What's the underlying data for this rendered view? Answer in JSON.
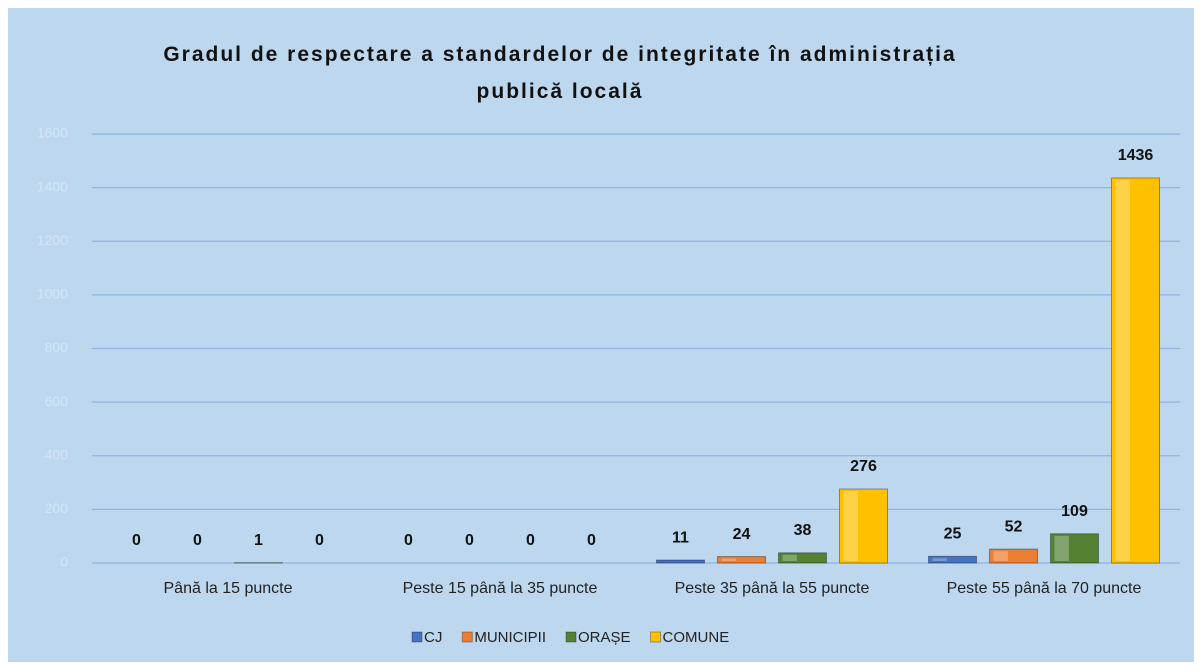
{
  "chart_data": {
    "type": "bar",
    "title": "Gradul de respectare a standardelor de integritate în administrația publică locală",
    "categories": [
      "Până la 15 puncte",
      "Peste 15 până la 35 puncte",
      "Peste 35 până la 55 puncte",
      "Peste 55 până la 70 puncte"
    ],
    "series": [
      {
        "name": "CJ",
        "color": "#4472c4",
        "values": [
          0,
          0,
          11,
          25
        ]
      },
      {
        "name": "MUNICIPII",
        "color": "#ed7d31",
        "values": [
          0,
          0,
          24,
          52
        ]
      },
      {
        "name": "ORAȘE",
        "color": "#548235",
        "values": [
          1,
          0,
          38,
          109
        ]
      },
      {
        "name": "COMUNE",
        "color": "#ffc000",
        "values": [
          0,
          0,
          276,
          1436
        ]
      }
    ],
    "ylim": [
      0,
      1600
    ],
    "yticks": [
      0,
      200,
      400,
      600,
      800,
      1000,
      1200,
      1400,
      1600
    ],
    "grid": true,
    "legend": "bottom"
  }
}
